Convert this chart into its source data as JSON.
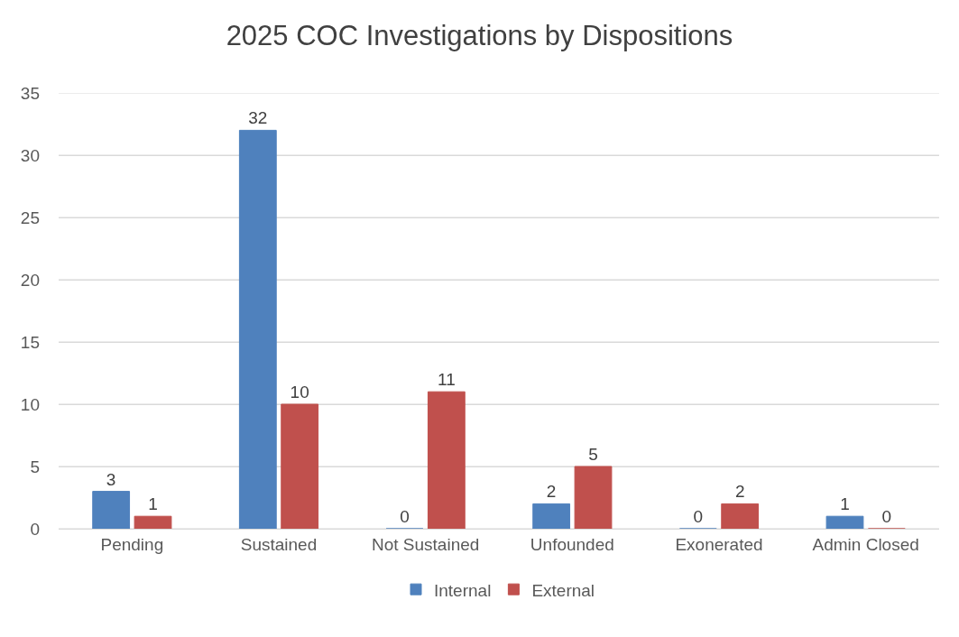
{
  "chart_data": {
    "type": "bar",
    "title": "2025 COC Investigations by Dispositions",
    "categories": [
      "Pending",
      "Sustained",
      "Not Sustained",
      "Unfounded",
      "Exonerated",
      "Admin Closed"
    ],
    "series": [
      {
        "name": "Internal",
        "color": "#4f81bd",
        "values": [
          3,
          32,
          0,
          2,
          0,
          1
        ]
      },
      {
        "name": "External",
        "color": "#c0504d",
        "values": [
          1,
          10,
          11,
          5,
          2,
          0
        ]
      }
    ],
    "ylim": [
      0,
      35
    ],
    "yticks": [
      0,
      5,
      10,
      15,
      20,
      25,
      30,
      35
    ],
    "grid": "y",
    "legend": "bottom",
    "data_labels": true
  }
}
